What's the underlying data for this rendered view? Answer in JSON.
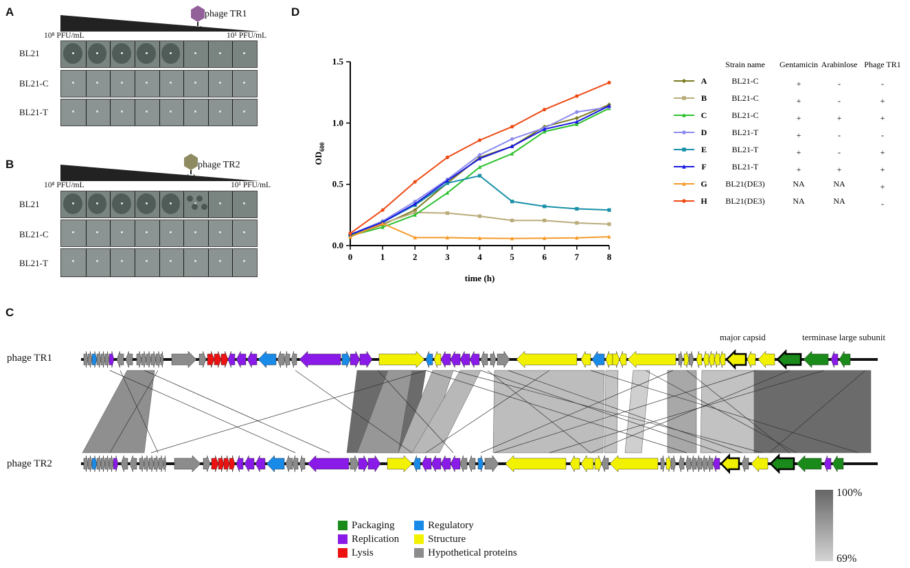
{
  "panelA": {
    "letter": "A",
    "phage": "phage TR1",
    "left_pfu": "10⁸ PFU/mL",
    "right_pfu": "10¹ PFU/mL",
    "phage_color": "#93619a",
    "rows": [
      "BL21",
      "BL21-C",
      "BL21-T"
    ]
  },
  "panelB": {
    "letter": "B",
    "phage": "phage TR2",
    "left_pfu": "10⁸ PFU/mL",
    "right_pfu": "10¹ PFU/mL",
    "phage_color": "#8e8a61",
    "rows": [
      "BL21",
      "BL21-C",
      "BL21-T"
    ]
  },
  "panelC": {
    "letter": "C",
    "genome1": "phage TR1",
    "genome2": "phage TR2",
    "annotation1": "major capsid",
    "annotation2": "terminase large subunit",
    "legend": [
      {
        "label": "Packaging",
        "color": "#1a8a1a"
      },
      {
        "label": "Replication",
        "color": "#8a1ae8"
      },
      {
        "label": "Lysis",
        "color": "#ee1111"
      },
      {
        "label": "Regulatory",
        "color": "#1a8ae8"
      },
      {
        "label": "Structure",
        "color": "#f2f200"
      },
      {
        "label": "Hypothetical proteins",
        "color": "#8c8c8c"
      }
    ],
    "scale_max": "100%",
    "scale_min": "69%"
  },
  "panelD": {
    "letter": "D"
  },
  "chart_data": {
    "type": "line",
    "xlabel": "time (h)",
    "ylabel": "OD",
    "ylabel_sub": "600",
    "x": [
      0,
      1,
      2,
      3,
      4,
      5,
      6,
      7,
      8
    ],
    "xlim": [
      0,
      8
    ],
    "ylim": [
      0,
      1.5
    ],
    "yticks": [
      "0.0",
      "0.5",
      "1.0",
      "1.5"
    ],
    "xticks": [
      "0",
      "1",
      "2",
      "3",
      "4",
      "5",
      "6",
      "7",
      "8"
    ],
    "legend_headers": [
      "Strain name",
      "Gentamicin",
      "Arabinlose",
      "Phage TR1"
    ],
    "series": [
      {
        "name": "A",
        "strain": "BL21-C",
        "gentamicin": "+",
        "arabinose": "-",
        "phage": "-",
        "color": "#7b7b1f",
        "marker": "diamond",
        "values": [
          0.08,
          0.17,
          0.29,
          0.51,
          0.72,
          0.81,
          0.97,
          1.04,
          1.15
        ]
      },
      {
        "name": "B",
        "strain": "BL21-C",
        "gentamicin": "+",
        "arabinose": "-",
        "phage": "+",
        "color": "#b9ab7a",
        "marker": "square",
        "values": [
          0.09,
          0.18,
          0.27,
          0.265,
          0.24,
          0.205,
          0.205,
          0.185,
          0.175
        ]
      },
      {
        "name": "C",
        "strain": "BL21-C",
        "gentamicin": "+",
        "arabinose": "+",
        "phage": "+",
        "color": "#2cc02c",
        "marker": "triangle",
        "values": [
          0.08,
          0.15,
          0.25,
          0.43,
          0.64,
          0.75,
          0.93,
          0.99,
          1.12
        ]
      },
      {
        "name": "D",
        "strain": "BL21-T",
        "gentamicin": "+",
        "arabinose": "-",
        "phage": "-",
        "color": "#8a8aef",
        "marker": "circle",
        "values": [
          0.09,
          0.2,
          0.36,
          0.54,
          0.74,
          0.87,
          0.96,
          1.09,
          1.13
        ]
      },
      {
        "name": "E",
        "strain": "BL21-T",
        "gentamicin": "+",
        "arabinose": "-",
        "phage": "+",
        "color": "#1890a8",
        "marker": "square",
        "values": [
          0.09,
          0.19,
          0.33,
          0.51,
          0.57,
          0.36,
          0.32,
          0.3,
          0.29
        ]
      },
      {
        "name": "F",
        "strain": "BL21-T",
        "gentamicin": "+",
        "arabinose": "+",
        "phage": "+",
        "color": "#1818e0",
        "marker": "triangle",
        "values": [
          0.09,
          0.19,
          0.34,
          0.53,
          0.71,
          0.81,
          0.95,
          1.01,
          1.14
        ]
      },
      {
        "name": "G",
        "strain": "BL21(DE3)",
        "gentamicin": "NA",
        "arabinose": "NA",
        "phage": "+",
        "color": "#f59a2a",
        "marker": "triangle",
        "values": [
          0.07,
          0.18,
          0.065,
          0.065,
          0.06,
          0.058,
          0.06,
          0.063,
          0.072
        ]
      },
      {
        "name": "H",
        "strain": "BL21(DE3)",
        "gentamicin": "NA",
        "arabinose": "NA",
        "phage": "-",
        "color": "#ee4a14",
        "marker": "circle",
        "values": [
          0.1,
          0.29,
          0.52,
          0.72,
          0.86,
          0.97,
          1.11,
          1.22,
          1.33
        ]
      }
    ]
  }
}
